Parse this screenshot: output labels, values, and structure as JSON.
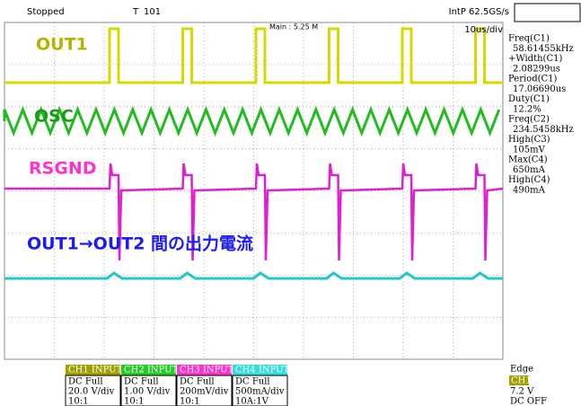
{
  "status": {
    "state": "Stopped",
    "trigger_position": "101",
    "sampling": "IntP  62.5GS/s",
    "memory": "Main : 5.25 M",
    "timebase": "10us/div"
  },
  "traces": [
    {
      "label": "OUT1",
      "color": "#b4b400"
    },
    {
      "label": "OSC",
      "color": "#1a9a1a"
    },
    {
      "label": "RSGND",
      "color": "#ff33cc"
    },
    {
      "label": "OUT1→OUT2 間の出力電流",
      "color": "#1a1aff"
    }
  ],
  "measurements": [
    {
      "name": "Freq(C1)",
      "value": "58.61455kHz"
    },
    {
      "name": "+Width(C1)",
      "value": "2.08299us"
    },
    {
      "name": "Period(C1)",
      "value": "17.06690us"
    },
    {
      "name": "Duty(C1)",
      "value": "12.2%"
    },
    {
      "name": "Freq(C2)",
      "value": "234.5458kHz"
    },
    {
      "name": "High(C3)",
      "value": "105mV"
    },
    {
      "name": "Max(C4)",
      "value": "650mA"
    },
    {
      "name": "High(C4)",
      "value": "490mA"
    }
  ],
  "channels": [
    {
      "header": "CH1 INPUT",
      "color": "#a0a000",
      "coupling": "DC Full",
      "scale": "20.0 V/div",
      "probe": "10:1"
    },
    {
      "header": "CH2 INPUT",
      "color": "#22cc22",
      "coupling": "DC Full",
      "scale": "1.00 V/div",
      "probe": "10:1"
    },
    {
      "header": "CH3 INPUT",
      "color": "#ff33cc",
      "coupling": "DC Full",
      "scale": "200mV/div",
      "probe": "10:1"
    },
    {
      "header": "CH4 INPUT",
      "color": "#33dddd",
      "coupling": "DC Full",
      "scale": "500mA/div",
      "probe": "10A:1V"
    }
  ],
  "trigger": {
    "mode": "Edge",
    "source": "CH1",
    "level": "7.2 V",
    "coupling": "DC OFF"
  }
}
